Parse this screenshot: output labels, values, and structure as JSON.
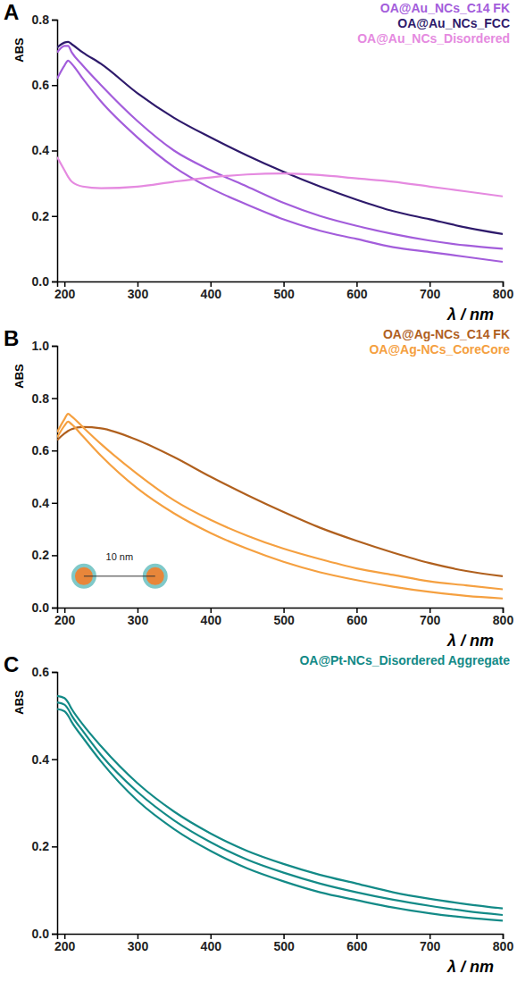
{
  "chart_data": [
    {
      "type": "line",
      "panel_label": "A",
      "x_label": "λ / nm",
      "y_label": "ABS",
      "legend": "top-right",
      "x": [
        190,
        200,
        205,
        210,
        225,
        250,
        300,
        350,
        400,
        450,
        500,
        550,
        600,
        650,
        700,
        750,
        800
      ],
      "xlim": [
        190,
        800
      ],
      "xticks": [
        200,
        300,
        400,
        500,
        600,
        700,
        800
      ],
      "ylim": [
        0,
        0.8
      ],
      "yticks": [
        {
          "value": 0,
          "label": "0.0"
        },
        0.2,
        0.4,
        0.6,
        0.8
      ],
      "series": [
        {
          "name": "OA@Au_NCs_C14 FK",
          "color": "#a35ddb",
          "values": [
            0.7,
            0.72,
            0.72,
            0.7,
            0.66,
            0.6,
            0.49,
            0.4,
            0.34,
            0.29,
            0.24,
            0.2,
            0.17,
            0.145,
            0.125,
            0.11,
            0.1
          ]
        },
        {
          "name": "OA@Au_NCs_C14 FK",
          "color": "#a35ddb",
          "values": [
            0.62,
            0.66,
            0.675,
            0.665,
            0.62,
            0.55,
            0.44,
            0.35,
            0.285,
            0.235,
            0.19,
            0.155,
            0.13,
            0.105,
            0.09,
            0.075,
            0.06
          ]
        },
        {
          "name": "OA@Au_NCs_FCC",
          "color": "#2e1a6b",
          "values": [
            0.715,
            0.73,
            0.732,
            0.725,
            0.7,
            0.665,
            0.575,
            0.5,
            0.44,
            0.385,
            0.335,
            0.29,
            0.25,
            0.215,
            0.19,
            0.165,
            0.145
          ]
        },
        {
          "name": "OA@Au_NCs_Disordered",
          "color": "#e58ae0",
          "values": [
            0.38,
            0.34,
            0.32,
            0.305,
            0.29,
            0.285,
            0.29,
            0.305,
            0.318,
            0.327,
            0.33,
            0.325,
            0.315,
            0.305,
            0.29,
            0.275,
            0.26
          ]
        }
      ]
    },
    {
      "type": "line",
      "panel_label": "B",
      "x_label": "λ / nm",
      "y_label": "ABS",
      "legend": "top-right",
      "annotations": [
        "10 nm"
      ],
      "x": [
        190,
        200,
        205,
        210,
        225,
        250,
        300,
        350,
        400,
        450,
        500,
        550,
        600,
        650,
        700,
        750,
        800
      ],
      "xlim": [
        190,
        800
      ],
      "xticks": [
        200,
        300,
        400,
        500,
        600,
        700,
        800
      ],
      "ylim": [
        0,
        1
      ],
      "yticks": [
        {
          "value": 0,
          "label": "0.0"
        },
        0.2,
        0.4,
        0.6,
        0.8,
        {
          "value": 1,
          "label": "1.0"
        }
      ],
      "series": [
        {
          "name": "OA@Ag-NCs_C14 FK",
          "color": "#b0601e",
          "values": [
            0.64,
            0.665,
            0.675,
            0.682,
            0.69,
            0.685,
            0.64,
            0.575,
            0.5,
            0.43,
            0.365,
            0.305,
            0.255,
            0.21,
            0.17,
            0.14,
            0.12
          ]
        },
        {
          "name": "OA@Ag-NCs_CoreCore",
          "color": "#f5a040",
          "values": [
            0.67,
            0.72,
            0.74,
            0.73,
            0.69,
            0.625,
            0.51,
            0.41,
            0.335,
            0.275,
            0.225,
            0.185,
            0.15,
            0.125,
            0.1,
            0.085,
            0.07
          ]
        },
        {
          "name": "OA@Ag-NCs_CoreCore",
          "color": "#f5a040",
          "values": [
            0.65,
            0.695,
            0.71,
            0.7,
            0.655,
            0.58,
            0.455,
            0.36,
            0.285,
            0.225,
            0.175,
            0.135,
            0.105,
            0.08,
            0.06,
            0.045,
            0.035
          ]
        }
      ]
    },
    {
      "type": "line",
      "panel_label": "C",
      "x_label": "λ / nm",
      "y_label": "ABS",
      "legend": "top-right",
      "x": [
        190,
        200,
        205,
        210,
        225,
        250,
        300,
        350,
        400,
        450,
        500,
        550,
        600,
        650,
        700,
        750,
        800
      ],
      "xlim": [
        190,
        800
      ],
      "xticks": [
        200,
        300,
        400,
        500,
        600,
        700,
        800
      ],
      "ylim": [
        0,
        0.6
      ],
      "yticks": [
        {
          "value": 0,
          "label": "0.0"
        },
        0.2,
        0.4,
        0.6
      ],
      "series": [
        {
          "name": "OA@Pt-NCs_Disordered Aggregate",
          "color": "#138a87",
          "values": [
            0.545,
            0.54,
            0.53,
            0.515,
            0.48,
            0.43,
            0.345,
            0.28,
            0.23,
            0.19,
            0.16,
            0.135,
            0.115,
            0.095,
            0.08,
            0.068,
            0.058
          ]
        },
        {
          "name": "OA@Pt-NCs_Disordered Aggregate",
          "color": "#138a87",
          "values": [
            0.53,
            0.525,
            0.515,
            0.5,
            0.465,
            0.41,
            0.325,
            0.26,
            0.21,
            0.17,
            0.14,
            0.115,
            0.095,
            0.078,
            0.064,
            0.052,
            0.043
          ]
        },
        {
          "name": "OA@Pt-NCs_Disordered Aggregate",
          "color": "#138a87",
          "values": [
            0.515,
            0.51,
            0.5,
            0.485,
            0.45,
            0.395,
            0.305,
            0.24,
            0.19,
            0.15,
            0.12,
            0.095,
            0.077,
            0.06,
            0.047,
            0.037,
            0.03
          ]
        }
      ]
    }
  ]
}
